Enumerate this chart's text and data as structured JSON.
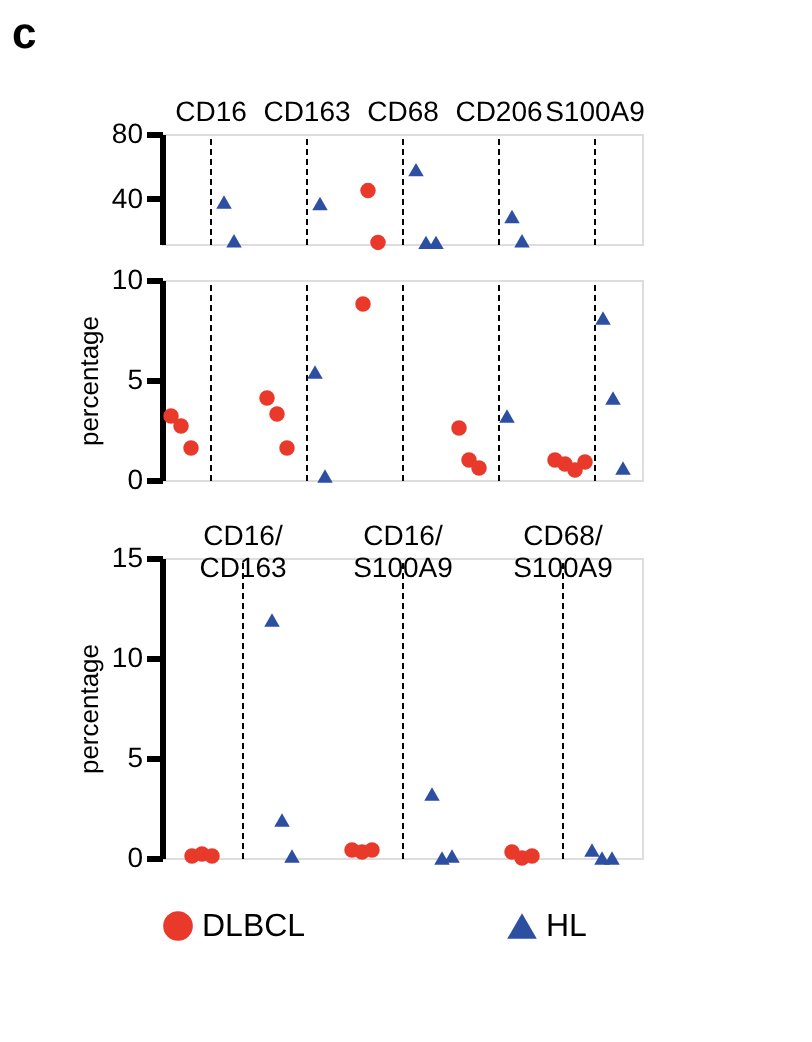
{
  "chart_data": [
    {
      "type": "scatter",
      "annotations": [
        "c"
      ],
      "categories": [
        "CD16",
        "CD163",
        "CD68",
        "CD206",
        "S100A9"
      ],
      "ylim": [
        12,
        80
      ],
      "yticks": [
        40,
        80
      ],
      "grid": "x",
      "legend": "bottom",
      "series": [
        {
          "name": "DLBCL",
          "color": "#e8392b",
          "marker": "circle",
          "x": [
            "CD68",
            "CD68"
          ],
          "values": [
            45,
            13
          ]
        },
        {
          "name": "HL",
          "color": "#2d4fa1",
          "marker": "triangle",
          "x": [
            "CD16",
            "CD16",
            "CD163",
            "CD68",
            "CD68",
            "CD68",
            "CD206",
            "CD206"
          ],
          "values": [
            38,
            14,
            37,
            58,
            13,
            13,
            29,
            14
          ]
        }
      ]
    },
    {
      "type": "scatter",
      "categories": [
        "CD16",
        "CD163",
        "CD68",
        "CD206",
        "S100A9"
      ],
      "ylim": [
        0,
        10
      ],
      "yticks": [
        0,
        5,
        10
      ],
      "ylabel": "percentage",
      "grid": "x",
      "tick_labels": "y",
      "legend": "bottom",
      "series": [
        {
          "name": "DLBCL",
          "color": "#e8392b",
          "marker": "circle",
          "x": [
            "CD16",
            "CD16",
            "CD16",
            "CD163",
            "CD163",
            "CD163",
            "CD68",
            "CD206",
            "CD206",
            "CD206",
            "S100A9",
            "S100A9",
            "S100A9",
            "S100A9"
          ],
          "values": [
            3.2,
            2.7,
            1.6,
            4.1,
            3.3,
            1.6,
            8.8,
            2.6,
            1.0,
            0.6,
            1.0,
            0.8,
            0.5,
            0.9
          ]
        },
        {
          "name": "HL",
          "color": "#2d4fa1",
          "marker": "triangle",
          "x": [
            "CD163",
            "CD163",
            "CD206",
            "S100A9",
            "S100A9",
            "S100A9"
          ],
          "values": [
            5.4,
            0.2,
            3.2,
            8.1,
            4.1,
            0.6
          ]
        }
      ]
    },
    {
      "type": "scatter",
      "categories": [
        "CD16/CD163",
        "CD16/S100A9",
        "CD68/S100A9"
      ],
      "ylim": [
        0,
        15
      ],
      "yticks": [
        0,
        5,
        10,
        15
      ],
      "ylabel": "percentage",
      "grid": "x",
      "legend": "bottom",
      "series": [
        {
          "name": "DLBCL",
          "color": "#e8392b",
          "marker": "circle",
          "x": [
            "CD16/CD163",
            "CD16/CD163",
            "CD16/CD163",
            "CD16/S100A9",
            "CD16/S100A9",
            "CD16/S100A9",
            "CD68/S100A9",
            "CD68/S100A9",
            "CD68/S100A9"
          ],
          "values": [
            0.1,
            0.2,
            0.1,
            0.4,
            0.3,
            0.4,
            0.3,
            0,
            0.1
          ]
        },
        {
          "name": "HL",
          "color": "#2d4fa1",
          "marker": "triangle",
          "x": [
            "CD16/CD163",
            "CD16/CD163",
            "CD16/CD163",
            "CD16/S100A9",
            "CD16/S100A9",
            "CD16/S100A9",
            "CD68/S100A9",
            "CD68/S100A9",
            "CD68/S100A9"
          ],
          "values": [
            11.9,
            1.9,
            0.1,
            3.2,
            0,
            0.1,
            0.4,
            0,
            0
          ]
        }
      ]
    }
  ]
}
